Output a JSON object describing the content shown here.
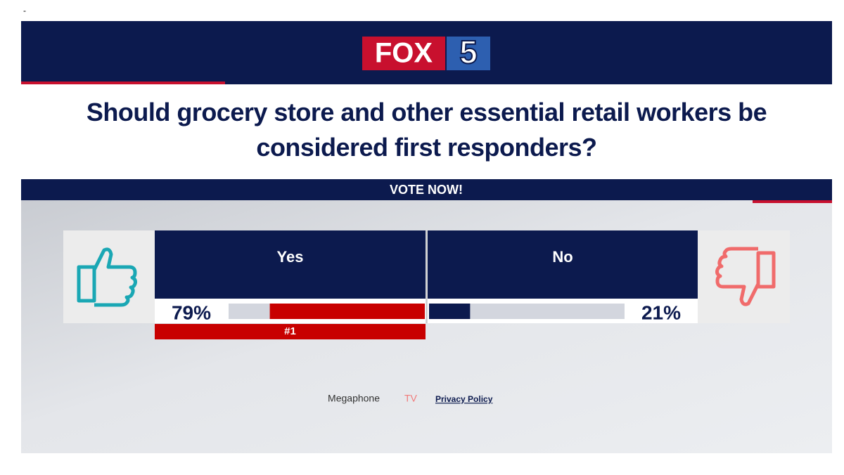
{
  "page_marker": "-",
  "header": {
    "logo_word": "FOX",
    "logo_number": "5"
  },
  "question": "Should grocery store and other essential retail workers be considered first responders?",
  "vote_banner": "VOTE NOW!",
  "options": [
    {
      "name": "Yes",
      "value": 79,
      "value_label": "79%",
      "rank": "#1"
    },
    {
      "name": "No",
      "value": 21,
      "value_label": "21%"
    }
  ],
  "footer": {
    "brand": "Megaphone",
    "brand_suffix": "TV",
    "privacy": "Privacy Policy"
  }
}
